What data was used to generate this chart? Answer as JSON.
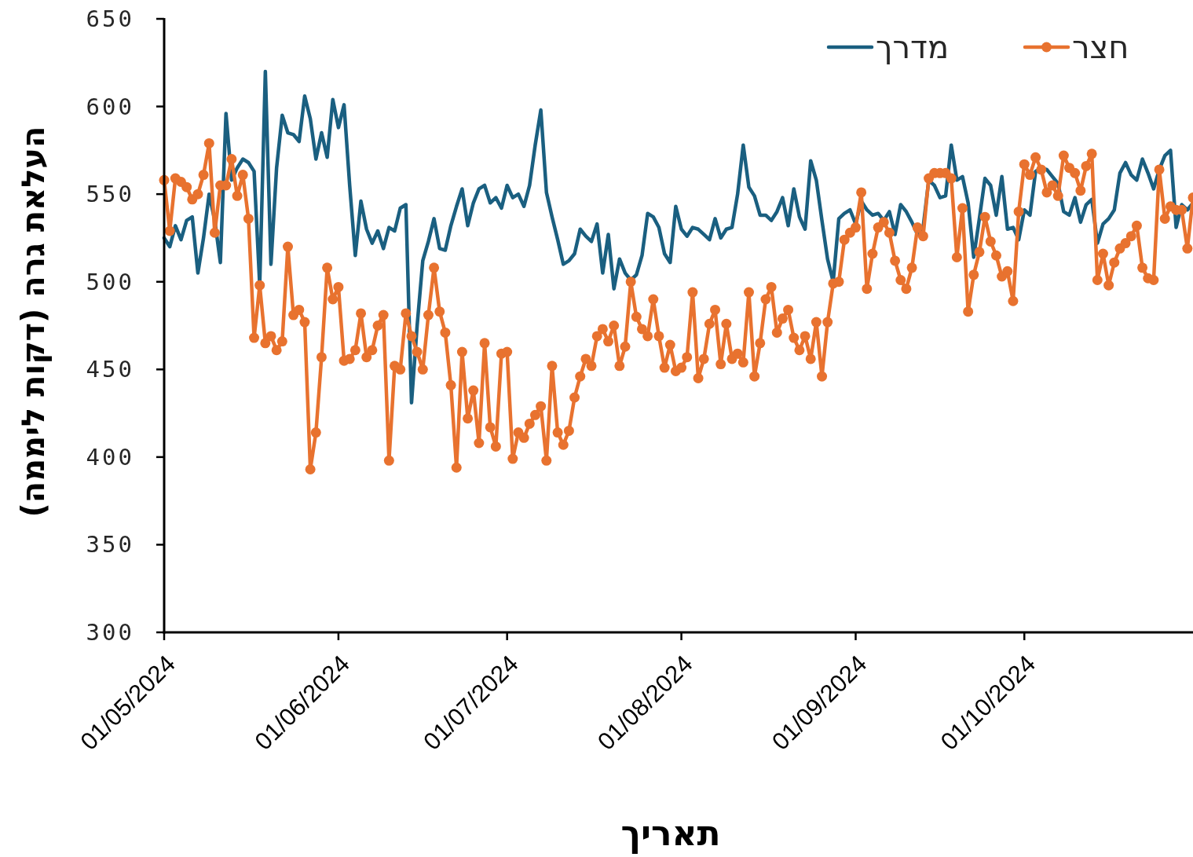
{
  "chart_data": {
    "type": "line",
    "xlabel": "תאריך",
    "ylabel": "העלאת גרה (דקות ליממה)",
    "legend": "top right",
    "ylim": [
      300,
      650
    ],
    "yticks": [
      300,
      350,
      400,
      450,
      500,
      550,
      600,
      650
    ],
    "xlim": [
      "2024-05-01",
      "2024-10-31"
    ],
    "xticks": [
      {
        "value": "2024-05-01",
        "label": "01/05/2024"
      },
      {
        "value": "2024-06-01",
        "label": "01/06/2024"
      },
      {
        "value": "2024-07-01",
        "label": "01/07/2024"
      },
      {
        "value": "2024-08-01",
        "label": "01/08/2024"
      },
      {
        "value": "2024-09-01",
        "label": "01/09/2024"
      },
      {
        "value": "2024-10-01",
        "label": "01/10/2024"
      }
    ],
    "x": [
      "2024-05-01",
      "2024-05-02",
      "2024-05-03",
      "2024-05-04",
      "2024-05-05",
      "2024-05-06",
      "2024-05-07",
      "2024-05-08",
      "2024-05-09",
      "2024-05-10",
      "2024-05-11",
      "2024-05-12",
      "2024-05-13",
      "2024-05-14",
      "2024-05-15",
      "2024-05-16",
      "2024-05-17",
      "2024-05-18",
      "2024-05-19",
      "2024-05-20",
      "2024-05-21",
      "2024-05-22",
      "2024-05-23",
      "2024-05-24",
      "2024-05-25",
      "2024-05-26",
      "2024-05-27",
      "2024-05-28",
      "2024-05-29",
      "2024-05-30",
      "2024-05-31",
      "2024-06-01",
      "2024-06-02",
      "2024-06-03",
      "2024-06-04",
      "2024-06-05",
      "2024-06-06",
      "2024-06-07",
      "2024-06-08",
      "2024-06-09",
      "2024-06-10",
      "2024-06-11",
      "2024-06-12",
      "2024-06-13",
      "2024-06-14",
      "2024-06-15",
      "2024-06-16",
      "2024-06-17",
      "2024-06-18",
      "2024-06-19",
      "2024-06-20",
      "2024-06-21",
      "2024-06-22",
      "2024-06-23",
      "2024-06-24",
      "2024-06-25",
      "2024-06-26",
      "2024-06-27",
      "2024-06-28",
      "2024-06-29",
      "2024-06-30",
      "2024-07-01",
      "2024-07-02",
      "2024-07-03",
      "2024-07-04",
      "2024-07-05",
      "2024-07-06",
      "2024-07-07",
      "2024-07-08",
      "2024-07-09",
      "2024-07-10",
      "2024-07-11",
      "2024-07-12",
      "2024-07-13",
      "2024-07-14",
      "2024-07-15",
      "2024-07-16",
      "2024-07-17",
      "2024-07-18",
      "2024-07-19",
      "2024-07-20",
      "2024-07-21",
      "2024-07-22",
      "2024-07-23",
      "2024-07-24",
      "2024-07-25",
      "2024-07-26",
      "2024-07-27",
      "2024-07-28",
      "2024-07-29",
      "2024-07-30",
      "2024-07-31",
      "2024-08-01",
      "2024-08-02",
      "2024-08-03",
      "2024-08-04",
      "2024-08-05",
      "2024-08-06",
      "2024-08-07",
      "2024-08-08",
      "2024-08-09",
      "2024-08-10",
      "2024-08-11",
      "2024-08-12",
      "2024-08-13",
      "2024-08-14",
      "2024-08-15",
      "2024-08-16",
      "2024-08-17",
      "2024-08-18",
      "2024-08-19",
      "2024-08-20",
      "2024-08-21",
      "2024-08-22",
      "2024-08-23",
      "2024-08-24",
      "2024-08-25",
      "2024-08-26",
      "2024-08-27",
      "2024-08-28",
      "2024-08-29",
      "2024-08-30",
      "2024-08-31",
      "2024-09-01",
      "2024-09-02",
      "2024-09-03",
      "2024-09-04",
      "2024-09-05",
      "2024-09-06",
      "2024-09-07",
      "2024-09-08",
      "2024-09-09",
      "2024-09-10",
      "2024-09-11",
      "2024-09-12",
      "2024-09-13",
      "2024-09-14",
      "2024-09-15",
      "2024-09-16",
      "2024-09-17",
      "2024-09-18",
      "2024-09-19",
      "2024-09-20",
      "2024-09-21",
      "2024-09-22",
      "2024-09-23",
      "2024-09-24",
      "2024-09-25",
      "2024-09-26",
      "2024-09-27",
      "2024-09-28",
      "2024-09-29",
      "2024-09-30",
      "2024-10-01",
      "2024-10-02",
      "2024-10-03",
      "2024-10-04",
      "2024-10-05",
      "2024-10-06",
      "2024-10-07",
      "2024-10-08",
      "2024-10-09",
      "2024-10-10",
      "2024-10-11",
      "2024-10-12",
      "2024-10-13",
      "2024-10-14",
      "2024-10-15",
      "2024-10-16",
      "2024-10-17",
      "2024-10-18",
      "2024-10-19",
      "2024-10-20",
      "2024-10-21",
      "2024-10-22",
      "2024-10-23",
      "2024-10-24",
      "2024-10-25",
      "2024-10-26",
      "2024-10-27",
      "2024-10-28",
      "2024-10-29",
      "2024-10-30",
      "2024-10-31"
    ],
    "series": [
      {
        "name": "מדרך",
        "color": "#1a5f80",
        "marker": "none",
        "values": [
          525,
          520,
          532,
          524,
          535,
          537,
          505,
          525,
          550,
          535,
          511,
          596,
          558,
          565,
          570,
          568,
          563,
          498,
          620,
          510,
          565,
          595,
          585,
          584,
          580,
          606,
          593,
          570,
          585,
          571,
          604,
          588,
          601,
          555,
          515,
          546,
          530,
          522,
          529,
          519,
          531,
          529,
          542,
          544,
          431,
          475,
          512,
          523,
          536,
          519,
          518,
          532,
          543,
          553,
          532,
          545,
          553,
          555,
          545,
          548,
          542,
          555,
          548,
          550,
          543,
          555,
          578,
          598,
          551,
          537,
          524,
          510,
          512,
          516,
          530,
          526,
          523,
          533,
          505,
          527,
          496,
          513,
          505,
          501,
          504,
          515,
          539,
          537,
          531,
          516,
          511,
          543,
          530,
          526,
          531,
          530,
          527,
          524,
          536,
          525,
          530,
          531,
          550,
          578,
          554,
          549,
          538,
          538,
          535,
          540,
          548,
          532,
          553,
          537,
          530,
          569,
          558,
          535,
          513,
          500,
          536,
          539,
          541,
          533,
          546,
          541,
          538,
          539,
          535,
          540,
          527,
          544,
          540,
          534,
          527,
          531,
          558,
          555,
          548,
          549,
          578,
          558,
          560,
          545,
          514,
          536,
          559,
          555,
          538,
          560,
          530,
          531,
          524,
          541,
          538,
          563,
          565,
          564,
          560,
          556,
          540,
          538,
          548,
          534,
          544,
          547,
          522,
          533,
          536,
          541,
          562,
          568,
          561,
          558,
          570,
          562,
          553,
          564,
          572,
          575,
          531,
          544,
          541,
          545
        ]
      },
      {
        "name": "חצר",
        "color": "#e8722f",
        "marker": "circle",
        "values": [
          558,
          529,
          559,
          557,
          554,
          547,
          550,
          561,
          579,
          528,
          555,
          555,
          570,
          549,
          561,
          536,
          468,
          498,
          465,
          469,
          461,
          466,
          520,
          481,
          484,
          477,
          393,
          414,
          457,
          508,
          490,
          497,
          455,
          456,
          461,
          482,
          457,
          461,
          475,
          481,
          398,
          452,
          450,
          482,
          469,
          460,
          450,
          481,
          508,
          483,
          471,
          441,
          394,
          460,
          422,
          438,
          408,
          465,
          417,
          406,
          459,
          460,
          399,
          414,
          411,
          419,
          424,
          429,
          398,
          452,
          414,
          407,
          415,
          434,
          446,
          456,
          452,
          469,
          473,
          466,
          475,
          452,
          463,
          500,
          480,
          473,
          469,
          490,
          469,
          451,
          464,
          449,
          451,
          457,
          494,
          445,
          456,
          476,
          484,
          453,
          476,
          456,
          459,
          454,
          494,
          446,
          465,
          490,
          497,
          471,
          479,
          484,
          468,
          461,
          469,
          456,
          477,
          446,
          477,
          499,
          500,
          524,
          528,
          531,
          551,
          496,
          516,
          531,
          534,
          528,
          512,
          501,
          496,
          508,
          531,
          526,
          559,
          562,
          562,
          562,
          559,
          514,
          542,
          483,
          504,
          517,
          537,
          523,
          515,
          503,
          506,
          489,
          540,
          567,
          561,
          571,
          564,
          551,
          555,
          549,
          572,
          565,
          562,
          552,
          566,
          573,
          501,
          516,
          498,
          511,
          519,
          522,
          526,
          532,
          508,
          502,
          501,
          564,
          536,
          543,
          541,
          541,
          519,
          548
        ]
      }
    ]
  }
}
